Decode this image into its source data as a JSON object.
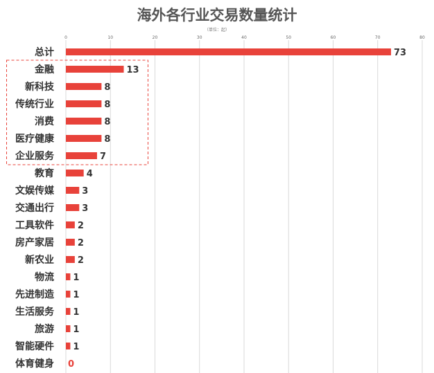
{
  "chart_data": {
    "type": "bar",
    "orientation": "horizontal",
    "title": "海外各行业交易数量统计",
    "subtitle": "（单位：起）",
    "categories": [
      "总计",
      "金融",
      "新科技",
      "传统行业",
      "消费",
      "医疗健康",
      "企业服务",
      "教育",
      "文娱传媒",
      "交通出行",
      "工具软件",
      "房产家居",
      "新农业",
      "物流",
      "先进制造",
      "生活服务",
      "旅游",
      "智能硬件",
      "体育健身"
    ],
    "values": [
      73,
      13,
      8,
      8,
      8,
      8,
      7,
      4,
      3,
      3,
      2,
      2,
      2,
      1,
      1,
      1,
      1,
      1,
      0
    ],
    "xlim": [
      0,
      80
    ],
    "xticks": [
      0,
      10,
      20,
      30,
      40,
      50,
      60,
      70,
      80
    ],
    "grid": true,
    "highlighted_group": [
      "金融",
      "新科技",
      "传统行业",
      "消费",
      "医疗健康",
      "企业服务"
    ],
    "colors": {
      "bar": "#e8423a",
      "zero_label": "#e8423a",
      "value_label": "#333333",
      "grid": "#d9d9d9",
      "highlight_box": "#e8423a"
    }
  }
}
